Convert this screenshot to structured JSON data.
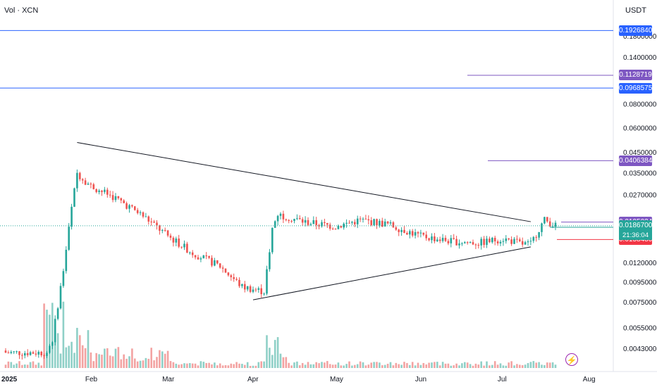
{
  "header": {
    "symbol_label": "Vol · XCN",
    "currency": "USDT"
  },
  "chart_data": {
    "type": "candlestick",
    "symbol": "XCN",
    "quote": "USDT",
    "y_scale": "log",
    "ylim": [
      0.0039,
      0.205
    ],
    "x_ticks": [
      "2025",
      "Feb",
      "Mar",
      "Apr",
      "May",
      "Jun",
      "Jul",
      "Aug"
    ],
    "y_ticks": [
      "0.1800000",
      "0.1400000",
      "0.0800000",
      "0.0600000",
      "0.0450000",
      "0.0350000",
      "0.0270000",
      "0.0120000",
      "0.0095000",
      "0.0075000",
      "0.0055000",
      "0.0043000"
    ],
    "horizontal_levels": [
      {
        "label": "0.1926840",
        "value": 0.192684,
        "color": "#2962ff"
      },
      {
        "label": "0.1128719",
        "value": 0.1128719,
        "color": "#7e57c2"
      },
      {
        "label": "0.0968575",
        "value": 0.0968575,
        "color": "#2962ff"
      },
      {
        "label": "0.0406384",
        "value": 0.0406384,
        "color": "#7e57c2"
      },
      {
        "label": "0.0195034",
        "value": 0.0195034,
        "color": "#7e57c2"
      },
      {
        "label": "0.0183268",
        "value": 0.0183268,
        "color": "#26a69a"
      },
      {
        "label": "0.0158480",
        "value": 0.015848,
        "color": "#f23645"
      }
    ],
    "last_price": {
      "label": "0.0186700",
      "value": 0.01867,
      "countdown": "21:36:04",
      "color": "#26a69a"
    },
    "triangle_points": [
      {
        "date": "2025-01-27",
        "value": 0.0505
      },
      {
        "date": "2025-04-01",
        "value": 0.0077
      },
      {
        "date": "2025-04-09",
        "value": 0.0293
      },
      {
        "date": "2025-07-11",
        "value": 0.0145
      }
    ],
    "ohlc_anchor_points": [
      {
        "date": "2025-01-18",
        "close": 0.0048
      },
      {
        "date": "2025-01-22",
        "close": 0.011
      },
      {
        "date": "2025-01-25",
        "close": 0.023
      },
      {
        "date": "2025-01-27",
        "close": 0.035
      },
      {
        "date": "2025-02-01",
        "close": 0.03
      },
      {
        "date": "2025-02-10",
        "close": 0.026
      },
      {
        "date": "2025-02-20",
        "close": 0.021
      },
      {
        "date": "2025-03-01",
        "close": 0.0165
      },
      {
        "date": "2025-03-10",
        "close": 0.0135
      },
      {
        "date": "2025-03-20",
        "close": 0.0115
      },
      {
        "date": "2025-03-28",
        "close": 0.009
      },
      {
        "date": "2025-04-05",
        "close": 0.0085
      },
      {
        "date": "2025-04-08",
        "close": 0.018
      },
      {
        "date": "2025-04-10",
        "close": 0.0215
      },
      {
        "date": "2025-04-20",
        "close": 0.0195
      },
      {
        "date": "2025-05-01",
        "close": 0.0185
      },
      {
        "date": "2025-05-10",
        "close": 0.02
      },
      {
        "date": "2025-05-20",
        "close": 0.019
      },
      {
        "date": "2025-06-01",
        "close": 0.0165
      },
      {
        "date": "2025-06-12",
        "close": 0.0155
      },
      {
        "date": "2025-06-22",
        "close": 0.0152
      },
      {
        "date": "2025-07-01",
        "close": 0.016
      },
      {
        "date": "2025-07-08",
        "close": 0.015
      },
      {
        "date": "2025-07-11",
        "close": 0.015
      },
      {
        "date": "2025-07-14",
        "close": 0.018
      },
      {
        "date": "2025-07-16",
        "close": 0.02
      },
      {
        "date": "2025-07-20",
        "close": 0.01867
      }
    ],
    "colors": {
      "up": "#26a69a",
      "down": "#ef5350",
      "vol_up": "#8fd0c7",
      "vol_down": "#f3a3a2"
    }
  },
  "icons": {
    "alert": "bolt-icon"
  }
}
